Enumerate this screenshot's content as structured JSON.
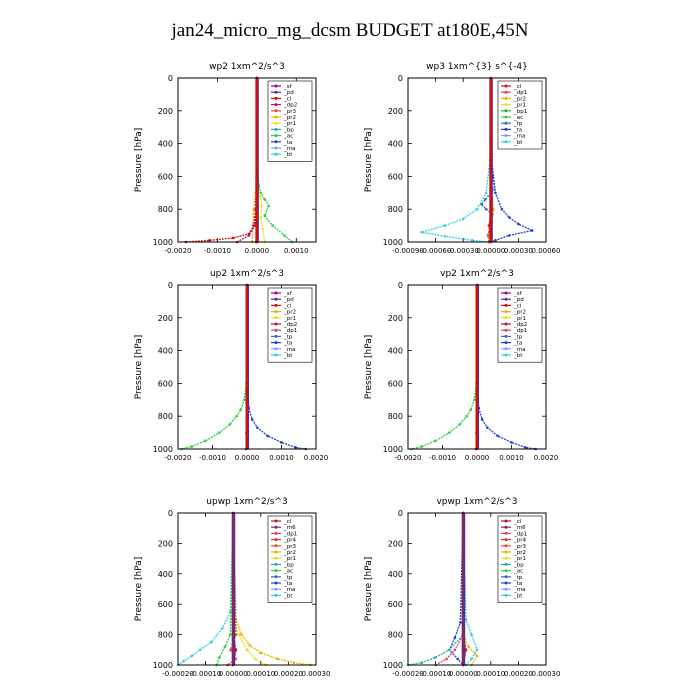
{
  "figure": {
    "title": "jan24_micro_mg_dcsm  BUDGET at180E,45N"
  },
  "colors": {
    "_sf": "#9a009a",
    "_pd": "#5a2a9a",
    "_cl": "#d01010",
    "_dp2": "#b0106a",
    "_pr3": "#e05030",
    "_pr2": "#f0b000",
    "_pr1": "#e8e020",
    "_bp": "#20b0a0",
    "_ac": "#30d040",
    "_ta": "#2040d0",
    "_ma": "#80a0ff",
    "_bt": "#30d0e0",
    "_dp1": "#e04050",
    "_bp1": "#40a040",
    "_tp": "#3070c0",
    "_m6": "#7a2a6a",
    "_pr4": "#d04020"
  },
  "chart_data": [
    {
      "type": "line",
      "title": "wp2   1xm^2/s^3",
      "ylabel": "Pressure  [hPa]",
      "xlabel": "",
      "xlim": [
        -0.002,
        0.0015
      ],
      "ylim": [
        1000,
        0
      ],
      "xticks": [
        "-0.0020",
        "-0.0010",
        "0.0000",
        "0.0010"
      ],
      "yticks": [
        "0",
        "200",
        "400",
        "600",
        "800",
        "1000"
      ],
      "legend": [
        "_sf",
        "_pd",
        "_cl",
        "_dp2",
        "_pr3",
        "_pr2",
        "_pr1",
        "_bp",
        "_ac",
        "_ta",
        "_ma",
        "_bt"
      ],
      "series": [
        {
          "name": "_ac",
          "x": [
            0,
            1e-05,
            5e-05,
            0.0001,
            0.0002,
            0.0003,
            0.0002,
            0.0004,
            0.0007,
            0.0009
          ],
          "y": [
            0,
            500,
            650,
            700,
            740,
            780,
            840,
            900,
            960,
            1000
          ]
        },
        {
          "name": "_pr1",
          "x": [
            0,
            1e-05,
            3e-05,
            8e-05,
            0.00012,
            0.0001,
            0.00015,
            0.0002
          ],
          "y": [
            0,
            500,
            650,
            720,
            780,
            850,
            920,
            1000
          ]
        },
        {
          "name": "_pr2",
          "x": [
            0,
            -1e-05,
            -3e-05,
            -8e-05,
            -0.0001,
            -0.00012
          ],
          "y": [
            0,
            500,
            700,
            800,
            900,
            1000
          ]
        },
        {
          "name": "_cl",
          "x": [
            0,
            -1e-05,
            -3e-05,
            -8e-05,
            -0.0002,
            -0.0006,
            -0.0012,
            -0.0018
          ],
          "y": [
            0,
            600,
            800,
            900,
            950,
            975,
            990,
            1000
          ]
        },
        {
          "name": "_dp2",
          "x": [
            0,
            0,
            -5e-05,
            -0.0002,
            -0.0005
          ],
          "y": [
            0,
            800,
            900,
            960,
            1000
          ]
        },
        {
          "name": "_pd",
          "x": [
            0,
            0,
            -1e-05,
            -2e-05
          ],
          "y": [
            0,
            800,
            900,
            1000
          ]
        },
        {
          "name": "_sf",
          "x": [
            0,
            0,
            0,
            0
          ],
          "y": [
            0,
            500,
            800,
            1000
          ]
        }
      ]
    },
    {
      "type": "line",
      "title": "wp3   1xm^{3} s^{-4}",
      "ylabel": "Pressure  [hPa]",
      "xlabel": "",
      "xlim": [
        -0.0009,
        0.0006
      ],
      "ylim": [
        1000,
        0
      ],
      "xticks": [
        "-0.00090",
        "-0.00060",
        "-0.00030",
        "0.00000",
        "0.00030",
        "0.00060"
      ],
      "yticks": [
        "0",
        "200",
        "400",
        "600",
        "800",
        "1000"
      ],
      "legend": [
        "_cl",
        "_dp1",
        "_pr2",
        "_pr1",
        "_bp1",
        "_ac",
        "_tp",
        "_ta",
        "_ma",
        "_bt"
      ],
      "series": [
        {
          "name": "_ta",
          "x": [
            0,
            1e-05,
            5e-05,
            0.00012,
            0.0002,
            0.0003,
            0.00045,
            0.0002,
            5e-05,
            0
          ],
          "y": [
            0,
            500,
            700,
            800,
            850,
            890,
            930,
            960,
            990,
            1000
          ]
        },
        {
          "name": "_bt",
          "x": [
            0,
            -1e-05,
            -5e-05,
            -0.00015,
            -0.0003,
            -0.0005,
            -0.00075,
            -0.0005,
            -0.0002,
            0
          ],
          "y": [
            0,
            500,
            700,
            800,
            860,
            900,
            940,
            965,
            990,
            1000
          ]
        },
        {
          "name": "_tp",
          "x": [
            0,
            2e-05,
            4e-05,
            -6e-05,
            -0.0001,
            -5e-05,
            2e-05,
            -2e-05,
            0
          ],
          "y": [
            0,
            600,
            680,
            740,
            770,
            800,
            830,
            900,
            1000
          ]
        },
        {
          "name": "_pr2",
          "x": [
            0,
            1e-05,
            3e-05,
            1e-05,
            -2e-05,
            0
          ],
          "y": [
            0,
            700,
            800,
            880,
            950,
            1000
          ]
        },
        {
          "name": "_cl",
          "x": [
            0,
            0,
            1e-05,
            -2e-05,
            1e-05,
            -1e-05
          ],
          "y": [
            0,
            500,
            800,
            900,
            960,
            1000
          ]
        },
        {
          "name": "_dp1",
          "x": [
            0,
            0,
            -1e-05,
            -3e-05,
            -2e-05
          ],
          "y": [
            0,
            800,
            900,
            960,
            1000
          ]
        }
      ]
    },
    {
      "type": "line",
      "title": "up2   1xm^2/s^3",
      "ylabel": "Pressure  [hPa]",
      "xlabel": "",
      "xlim": [
        -0.002,
        0.002
      ],
      "ylim": [
        1000,
        0
      ],
      "xticks": [
        "-0.0020",
        "-0.0010",
        "0.0000",
        "0.0010",
        "0.0020"
      ],
      "yticks": [
        "0",
        "200",
        "400",
        "600",
        "800",
        "1000"
      ],
      "legend": [
        "_sf",
        "_pd",
        "_cl",
        "_pr2",
        "_pr1",
        "_dp2",
        "_dp1",
        "_tp",
        "_ta",
        "_ma",
        "_bt"
      ],
      "series": [
        {
          "name": "_ac",
          "x": [
            0,
            -2e-05,
            -8e-05,
            -0.00018,
            -0.0003,
            -0.0005,
            -0.0008,
            -0.0012,
            -0.0016,
            -0.0019
          ],
          "y": [
            0,
            600,
            700,
            760,
            800,
            850,
            900,
            950,
            985,
            1000
          ]
        },
        {
          "name": "_ta",
          "x": [
            0,
            1e-05,
            5e-05,
            0.00015,
            0.0003,
            0.0006,
            0.001,
            0.0014,
            0.0017
          ],
          "y": [
            0,
            600,
            750,
            820,
            870,
            920,
            960,
            990,
            1000
          ]
        },
        {
          "name": "_pr1",
          "x": [
            0,
            0,
            2e-05,
            3e-05,
            2e-05
          ],
          "y": [
            0,
            600,
            800,
            900,
            1000
          ]
        },
        {
          "name": "_cl",
          "x": [
            0,
            0,
            -1e-05,
            -2e-05,
            -3e-05
          ],
          "y": [
            0,
            500,
            800,
            900,
            1000
          ]
        }
      ]
    },
    {
      "type": "line",
      "title": "vp2   1xm^2/s^3",
      "ylabel": "Pressure  [hPa]",
      "xlabel": "",
      "xlim": [
        -0.002,
        0.002
      ],
      "ylim": [
        1000,
        0
      ],
      "xticks": [
        "-0.0020",
        "-0.0010",
        "0.0000",
        "0.0010",
        "0.0020"
      ],
      "yticks": [
        "0",
        "200",
        "400",
        "600",
        "800",
        "1000"
      ],
      "legend": [
        "_sf",
        "_pd",
        "_cl",
        "_pr2",
        "_pr1",
        "_dp2",
        "_dp1",
        "_tp",
        "_ta",
        "_ma",
        "_bt"
      ],
      "series": [
        {
          "name": "_ac",
          "x": [
            0,
            -2e-05,
            -8e-05,
            -0.00018,
            -0.0003,
            -0.0005,
            -0.0008,
            -0.0012,
            -0.0016,
            -0.0019
          ],
          "y": [
            0,
            600,
            700,
            760,
            800,
            850,
            900,
            950,
            985,
            1000
          ]
        },
        {
          "name": "_ta",
          "x": [
            0,
            1e-05,
            5e-05,
            0.00015,
            0.0003,
            0.0006,
            0.001,
            0.0014,
            0.0017
          ],
          "y": [
            0,
            600,
            750,
            820,
            870,
            920,
            960,
            990,
            1000
          ]
        },
        {
          "name": "_pr1",
          "x": [
            0,
            0,
            2e-05,
            3e-05,
            2e-05
          ],
          "y": [
            0,
            600,
            800,
            900,
            1000
          ]
        },
        {
          "name": "_cl",
          "x": [
            0,
            0,
            -1e-05,
            -2e-05,
            -3e-05
          ],
          "y": [
            0,
            500,
            800,
            900,
            1000
          ]
        }
      ]
    },
    {
      "type": "line",
      "title": "upwp   1xm^2/s^3",
      "ylabel": "Pressure  [hPa]",
      "xlabel": "",
      "xlim": [
        -0.0002,
        0.0003
      ],
      "ylim": [
        1000,
        0
      ],
      "xticks": [
        "-0.00020",
        "-0.00010",
        "0.00000",
        "0.00010",
        "0.00020",
        "0.00030"
      ],
      "yticks": [
        "0",
        "200",
        "400",
        "600",
        "800",
        "1000"
      ],
      "legend": [
        "_cl",
        "_m6",
        "_dp1",
        "_pr4",
        "_pr3",
        "_pr2",
        "_pr1",
        "_bp",
        "_ac",
        "_tp",
        "_ta",
        "_ma",
        "_bt"
      ],
      "series": [
        {
          "name": "_bt",
          "x": [
            0,
            -1e-05,
            -4e-05,
            -8e-05,
            -0.00012,
            -0.00015,
            -0.00018,
            -0.0002
          ],
          "y": [
            0,
            650,
            760,
            850,
            900,
            940,
            975,
            1000
          ]
        },
        {
          "name": "_pr2",
          "x": [
            0,
            1e-05,
            3e-05,
            6e-05,
            0.0001,
            0.00016,
            0.00022,
            0.00028
          ],
          "y": [
            0,
            700,
            800,
            870,
            920,
            960,
            985,
            1000
          ]
        },
        {
          "name": "_pr1",
          "x": [
            0,
            0,
            2e-05,
            5e-05,
            8e-05,
            0.00012
          ],
          "y": [
            0,
            700,
            800,
            900,
            960,
            1000
          ]
        },
        {
          "name": "_ac",
          "x": [
            0,
            -1e-05,
            -3e-05,
            -5e-05,
            -6e-05
          ],
          "y": [
            0,
            800,
            880,
            950,
            1000
          ]
        },
        {
          "name": "_pr3",
          "x": [
            0,
            1e-05,
            -1e-05,
            1e-05,
            -2e-05
          ],
          "y": [
            0,
            800,
            900,
            960,
            1000
          ]
        },
        {
          "name": "_cl",
          "x": [
            0,
            0,
            0,
            1e-05,
            0
          ],
          "y": [
            0,
            500,
            800,
            900,
            1000
          ]
        }
      ]
    },
    {
      "type": "line",
      "title": "vpwp   1xm^2/s^3",
      "ylabel": "Pressure  [hPa]",
      "xlabel": "",
      "xlim": [
        -0.0002,
        0.0003
      ],
      "ylim": [
        1000,
        0
      ],
      "xticks": [
        "-0.00020",
        "-0.00010",
        "0.00000",
        "0.00010",
        "0.00020",
        "0.00030"
      ],
      "yticks": [
        "0",
        "200",
        "400",
        "600",
        "800",
        "1000"
      ],
      "legend": [
        "_cl",
        "_m6",
        "_dp1",
        "_pr4",
        "_pr3",
        "_pr2",
        "_pr1",
        "_bp",
        "_ac",
        "_tp",
        "_ta",
        "_ma",
        "_bt"
      ],
      "series": [
        {
          "name": "_bt",
          "x": [
            0,
            1e-05,
            3e-05,
            5e-05,
            3e-05,
            1e-05
          ],
          "y": [
            0,
            700,
            800,
            900,
            960,
            1000
          ]
        },
        {
          "name": "_ta",
          "x": [
            0,
            -1e-05,
            -3e-05,
            -5e-05,
            -2e-05,
            0
          ],
          "y": [
            0,
            720,
            820,
            900,
            960,
            1000
          ]
        },
        {
          "name": "_bp",
          "x": [
            0,
            0,
            -5e-05,
            -0.0001,
            -0.00015,
            -0.0002
          ],
          "y": [
            0,
            800,
            900,
            950,
            985,
            1000
          ]
        },
        {
          "name": "_dp1",
          "x": [
            0,
            0,
            -3e-05,
            -6e-05,
            -0.0001
          ],
          "y": [
            0,
            800,
            900,
            960,
            1000
          ]
        },
        {
          "name": "_pr2",
          "x": [
            0,
            0,
            2e-05,
            5e-05,
            3e-05
          ],
          "y": [
            0,
            800,
            880,
            940,
            1000
          ]
        },
        {
          "name": "_cl",
          "x": [
            0,
            0,
            0,
            1e-05,
            0
          ],
          "y": [
            0,
            500,
            800,
            900,
            1000
          ]
        }
      ]
    }
  ]
}
